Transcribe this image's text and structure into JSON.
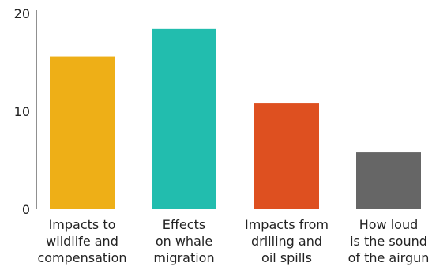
{
  "chart_data": {
    "type": "bar",
    "categories": [
      [
        "Impacts to",
        "wildlife and",
        "compensation"
      ],
      [
        "Effects",
        "on whale",
        "migration"
      ],
      [
        "Impacts from",
        "drilling and",
        "oil spills"
      ],
      [
        "How loud",
        "is the sound",
        "of the airgun"
      ]
    ],
    "values": [
      15.6,
      18.4,
      10.8,
      5.8
    ],
    "colors": [
      "#EEAF17",
      "#22BDAE",
      "#DE5020",
      "#666666"
    ],
    "ylim": [
      0,
      20
    ],
    "yticks": [
      "0",
      "10",
      "20"
    ],
    "grid": false,
    "title": "",
    "xlabel": "",
    "ylabel": ""
  }
}
